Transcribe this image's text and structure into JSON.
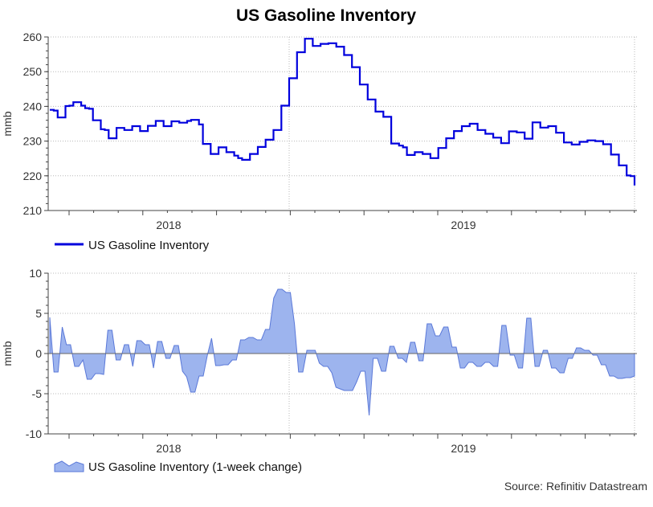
{
  "chart_data": [
    {
      "type": "line",
      "title": "US Gasoline Inventory",
      "ylabel": "mmb",
      "xlabel": "",
      "ylim": [
        210,
        260
      ],
      "yticks": [
        210,
        220,
        230,
        240,
        250,
        260
      ],
      "x_tick_labels": [
        "2018",
        "2019"
      ],
      "legend": "bottom-left",
      "series": [
        {
          "name": "US Gasoline Inventory",
          "color": "#0000dd",
          "values": [
            239,
            238.8,
            236.8,
            236.8,
            240.1,
            240.2,
            241.2,
            241.2,
            240.2,
            239.5,
            239.3,
            236,
            236,
            233.4,
            233.2,
            230.8,
            230.8,
            233.8,
            233.8,
            233.2,
            233.2,
            234.3,
            234.3,
            232.9,
            232.9,
            234.4,
            234.4,
            235.8,
            235.8,
            234.3,
            234.3,
            235.7,
            235.7,
            235.3,
            235.3,
            235.8,
            236.1,
            236.1,
            234.8,
            229.2,
            229.2,
            226.3,
            226.3,
            228.2,
            228.2,
            226.8,
            226.8,
            225.8,
            225.1,
            224.6,
            224.6,
            226.3,
            226.3,
            228.3,
            228.3,
            230.4,
            230.4,
            233.2,
            233.2,
            240.2,
            240.2,
            248.1,
            248.1,
            255.6,
            255.6,
            259.5,
            259.5,
            257.4,
            257.4,
            258,
            258,
            258.2,
            258.2,
            257.2,
            257.2,
            254.8,
            254.8,
            251.3,
            251.3,
            246.3,
            246.3,
            242,
            242,
            238.5,
            238.5,
            237,
            237,
            229.3,
            229.3,
            228.7,
            228.2,
            226,
            226,
            226.8,
            226.8,
            226.3,
            226.3,
            225.1,
            225.1,
            228,
            228,
            230.8,
            230.8,
            232.9,
            232.9,
            234.3,
            234.3,
            235,
            235,
            233.2,
            233.2,
            232.1,
            232.1,
            231,
            231,
            229.4,
            229.4,
            232.8,
            232.8,
            232.5,
            232.5,
            230.7,
            230.7,
            235.4,
            235.4,
            233.9,
            233.9,
            234.3,
            234.3,
            232.4,
            232.4,
            229.6,
            229.6,
            229,
            229,
            229.8,
            229.8,
            230.2,
            230.2,
            230,
            230,
            229.1,
            229.1,
            226.1,
            226.1,
            223,
            223,
            220.1,
            219.9,
            217.2
          ]
        }
      ]
    },
    {
      "type": "area",
      "title": "",
      "ylabel": "mmb",
      "xlabel": "",
      "ylim": [
        -10,
        10
      ],
      "yticks": [
        -10,
        -5,
        0,
        5,
        10
      ],
      "x_tick_labels": [
        "2018",
        "2019"
      ],
      "legend": "bottom-left",
      "series": [
        {
          "name": "US Gasoline Inventory (1-week change)",
          "color": "#9db4ee",
          "values": [
            4.5,
            -2.3,
            -2.3,
            3.3,
            1.1,
            1.1,
            -1.6,
            -1.6,
            -0.8,
            -3.2,
            -3.2,
            -2.5,
            -2.5,
            -2.6,
            2.9,
            2.9,
            -0.8,
            -0.8,
            1.1,
            1.1,
            -1.6,
            1.6,
            1.6,
            1.1,
            1.1,
            -1.8,
            1.5,
            1.5,
            -0.6,
            -0.6,
            1,
            1,
            -2.2,
            -2.9,
            -4.8,
            -4.8,
            -2.8,
            -2.8,
            -0.2,
            1.9,
            -1.5,
            -1.5,
            -1.4,
            -1.4,
            -0.8,
            -0.8,
            1.7,
            1.7,
            2,
            2,
            1.7,
            1.7,
            3,
            3,
            6.9,
            8,
            8,
            7.6,
            7.6,
            3.7,
            -2.3,
            -2.3,
            0.4,
            0.4,
            0.4,
            -1.2,
            -1.6,
            -1.6,
            -2.4,
            -4.2,
            -4.4,
            -4.6,
            -4.6,
            -4.6,
            -3.5,
            -2.2,
            -2.2,
            -7.7,
            -0.6,
            -0.6,
            -2.2,
            -2.2,
            0.9,
            0.9,
            -0.6,
            -0.6,
            -1.1,
            1.4,
            1.4,
            -0.9,
            -0.9,
            3.7,
            3.7,
            2.2,
            2.2,
            3.3,
            3.3,
            0.8,
            0.8,
            -1.8,
            -1.8,
            -1.1,
            -1.1,
            -1.6,
            -1.6,
            -1.1,
            -1.1,
            -1.6,
            -1.6,
            3.5,
            3.5,
            -0.2,
            -0.2,
            -1.8,
            -1.8,
            4.4,
            4.4,
            -1.6,
            -1.6,
            0.4,
            0.4,
            -1.8,
            -1.8,
            -2.4,
            -2.4,
            -0.6,
            -0.6,
            0.7,
            0.7,
            0.4,
            0.4,
            -0.2,
            -0.2,
            -1.4,
            -1.4,
            -2.8,
            -2.8,
            -3.1,
            -3.1,
            -3,
            -3,
            -2.8
          ]
        }
      ]
    }
  ],
  "source": "Source: Refinitiv Datastream"
}
